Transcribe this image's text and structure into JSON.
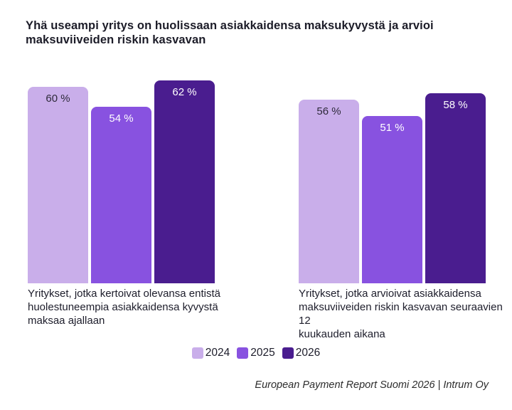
{
  "title_lines": [
    "Yhä useampi yritys on huolissaan asiakkaidensa maksukyvystä ja arvioi",
    "maksuviiveiden riskin kasvavan"
  ],
  "legend": {
    "items": [
      {
        "label": "2024",
        "color": "#c9aeea"
      },
      {
        "label": "2025",
        "color": "#8852e0"
      },
      {
        "label": "2026",
        "color": "#4a1d8f"
      }
    ]
  },
  "chart_data": [
    {
      "type": "bar",
      "categories": [
        "2024",
        "2025",
        "2026"
      ],
      "values": [
        60,
        54,
        62
      ],
      "unit": "%",
      "value_labels": [
        "60 %",
        "54 %",
        "62 %"
      ],
      "bar_colors": [
        "#c9aeea",
        "#8852e0",
        "#4a1d8f"
      ],
      "ylim": [
        0,
        65
      ],
      "caption_lines": [
        "Yritykset, jotka kertoivat olevansa entistä",
        "huolestuneempia asiakkaidensa kyvystä",
        "maksaa ajallaan"
      ]
    },
    {
      "type": "bar",
      "categories": [
        "2024",
        "2025",
        "2026"
      ],
      "values": [
        56,
        51,
        58
      ],
      "unit": "%",
      "value_labels": [
        "56 %",
        "51 %",
        "58 %"
      ],
      "bar_colors": [
        "#c9aeea",
        "#8852e0",
        "#4a1d8f"
      ],
      "ylim": [
        0,
        65
      ],
      "caption_lines": [
        "Yritykset, jotka arvioivat asiakkaidensa",
        "maksuviiveiden riskin kasvavan seuraavien 12",
        "kuukauden aikana"
      ]
    }
  ],
  "footer": "European Payment Report Suomi 2026 | Intrum Oy"
}
